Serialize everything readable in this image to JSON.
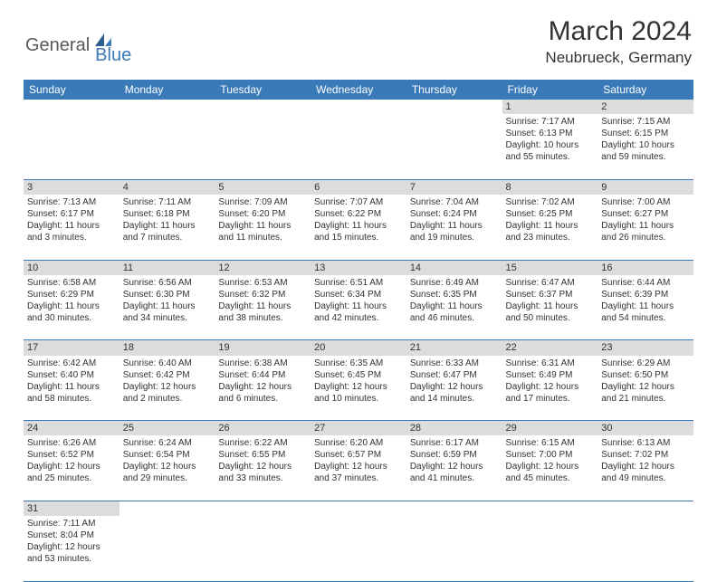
{
  "logo": {
    "text1": "General",
    "text2": "Blue"
  },
  "title": "March 2024",
  "location": "Neubrueck, Germany",
  "colors": {
    "header_bg": "#3a7ab8",
    "header_text": "#ffffff",
    "daynum_bg": "#dcdcdc",
    "border": "#3a7ab8",
    "text": "#333333",
    "logo_gray": "#5a5a5a",
    "logo_blue": "#3a7ab8"
  },
  "weekdays": [
    "Sunday",
    "Monday",
    "Tuesday",
    "Wednesday",
    "Thursday",
    "Friday",
    "Saturday"
  ],
  "weeks": [
    [
      null,
      null,
      null,
      null,
      null,
      {
        "n": "1",
        "sr": "Sunrise: 7:17 AM",
        "ss": "Sunset: 6:13 PM",
        "d1": "Daylight: 10 hours",
        "d2": "and 55 minutes."
      },
      {
        "n": "2",
        "sr": "Sunrise: 7:15 AM",
        "ss": "Sunset: 6:15 PM",
        "d1": "Daylight: 10 hours",
        "d2": "and 59 minutes."
      }
    ],
    [
      {
        "n": "3",
        "sr": "Sunrise: 7:13 AM",
        "ss": "Sunset: 6:17 PM",
        "d1": "Daylight: 11 hours",
        "d2": "and 3 minutes."
      },
      {
        "n": "4",
        "sr": "Sunrise: 7:11 AM",
        "ss": "Sunset: 6:18 PM",
        "d1": "Daylight: 11 hours",
        "d2": "and 7 minutes."
      },
      {
        "n": "5",
        "sr": "Sunrise: 7:09 AM",
        "ss": "Sunset: 6:20 PM",
        "d1": "Daylight: 11 hours",
        "d2": "and 11 minutes."
      },
      {
        "n": "6",
        "sr": "Sunrise: 7:07 AM",
        "ss": "Sunset: 6:22 PM",
        "d1": "Daylight: 11 hours",
        "d2": "and 15 minutes."
      },
      {
        "n": "7",
        "sr": "Sunrise: 7:04 AM",
        "ss": "Sunset: 6:24 PM",
        "d1": "Daylight: 11 hours",
        "d2": "and 19 minutes."
      },
      {
        "n": "8",
        "sr": "Sunrise: 7:02 AM",
        "ss": "Sunset: 6:25 PM",
        "d1": "Daylight: 11 hours",
        "d2": "and 23 minutes."
      },
      {
        "n": "9",
        "sr": "Sunrise: 7:00 AM",
        "ss": "Sunset: 6:27 PM",
        "d1": "Daylight: 11 hours",
        "d2": "and 26 minutes."
      }
    ],
    [
      {
        "n": "10",
        "sr": "Sunrise: 6:58 AM",
        "ss": "Sunset: 6:29 PM",
        "d1": "Daylight: 11 hours",
        "d2": "and 30 minutes."
      },
      {
        "n": "11",
        "sr": "Sunrise: 6:56 AM",
        "ss": "Sunset: 6:30 PM",
        "d1": "Daylight: 11 hours",
        "d2": "and 34 minutes."
      },
      {
        "n": "12",
        "sr": "Sunrise: 6:53 AM",
        "ss": "Sunset: 6:32 PM",
        "d1": "Daylight: 11 hours",
        "d2": "and 38 minutes."
      },
      {
        "n": "13",
        "sr": "Sunrise: 6:51 AM",
        "ss": "Sunset: 6:34 PM",
        "d1": "Daylight: 11 hours",
        "d2": "and 42 minutes."
      },
      {
        "n": "14",
        "sr": "Sunrise: 6:49 AM",
        "ss": "Sunset: 6:35 PM",
        "d1": "Daylight: 11 hours",
        "d2": "and 46 minutes."
      },
      {
        "n": "15",
        "sr": "Sunrise: 6:47 AM",
        "ss": "Sunset: 6:37 PM",
        "d1": "Daylight: 11 hours",
        "d2": "and 50 minutes."
      },
      {
        "n": "16",
        "sr": "Sunrise: 6:44 AM",
        "ss": "Sunset: 6:39 PM",
        "d1": "Daylight: 11 hours",
        "d2": "and 54 minutes."
      }
    ],
    [
      {
        "n": "17",
        "sr": "Sunrise: 6:42 AM",
        "ss": "Sunset: 6:40 PM",
        "d1": "Daylight: 11 hours",
        "d2": "and 58 minutes."
      },
      {
        "n": "18",
        "sr": "Sunrise: 6:40 AM",
        "ss": "Sunset: 6:42 PM",
        "d1": "Daylight: 12 hours",
        "d2": "and 2 minutes."
      },
      {
        "n": "19",
        "sr": "Sunrise: 6:38 AM",
        "ss": "Sunset: 6:44 PM",
        "d1": "Daylight: 12 hours",
        "d2": "and 6 minutes."
      },
      {
        "n": "20",
        "sr": "Sunrise: 6:35 AM",
        "ss": "Sunset: 6:45 PM",
        "d1": "Daylight: 12 hours",
        "d2": "and 10 minutes."
      },
      {
        "n": "21",
        "sr": "Sunrise: 6:33 AM",
        "ss": "Sunset: 6:47 PM",
        "d1": "Daylight: 12 hours",
        "d2": "and 14 minutes."
      },
      {
        "n": "22",
        "sr": "Sunrise: 6:31 AM",
        "ss": "Sunset: 6:49 PM",
        "d1": "Daylight: 12 hours",
        "d2": "and 17 minutes."
      },
      {
        "n": "23",
        "sr": "Sunrise: 6:29 AM",
        "ss": "Sunset: 6:50 PM",
        "d1": "Daylight: 12 hours",
        "d2": "and 21 minutes."
      }
    ],
    [
      {
        "n": "24",
        "sr": "Sunrise: 6:26 AM",
        "ss": "Sunset: 6:52 PM",
        "d1": "Daylight: 12 hours",
        "d2": "and 25 minutes."
      },
      {
        "n": "25",
        "sr": "Sunrise: 6:24 AM",
        "ss": "Sunset: 6:54 PM",
        "d1": "Daylight: 12 hours",
        "d2": "and 29 minutes."
      },
      {
        "n": "26",
        "sr": "Sunrise: 6:22 AM",
        "ss": "Sunset: 6:55 PM",
        "d1": "Daylight: 12 hours",
        "d2": "and 33 minutes."
      },
      {
        "n": "27",
        "sr": "Sunrise: 6:20 AM",
        "ss": "Sunset: 6:57 PM",
        "d1": "Daylight: 12 hours",
        "d2": "and 37 minutes."
      },
      {
        "n": "28",
        "sr": "Sunrise: 6:17 AM",
        "ss": "Sunset: 6:59 PM",
        "d1": "Daylight: 12 hours",
        "d2": "and 41 minutes."
      },
      {
        "n": "29",
        "sr": "Sunrise: 6:15 AM",
        "ss": "Sunset: 7:00 PM",
        "d1": "Daylight: 12 hours",
        "d2": "and 45 minutes."
      },
      {
        "n": "30",
        "sr": "Sunrise: 6:13 AM",
        "ss": "Sunset: 7:02 PM",
        "d1": "Daylight: 12 hours",
        "d2": "and 49 minutes."
      }
    ],
    [
      {
        "n": "31",
        "sr": "Sunrise: 7:11 AM",
        "ss": "Sunset: 8:04 PM",
        "d1": "Daylight: 12 hours",
        "d2": "and 53 minutes."
      },
      null,
      null,
      null,
      null,
      null,
      null
    ]
  ]
}
